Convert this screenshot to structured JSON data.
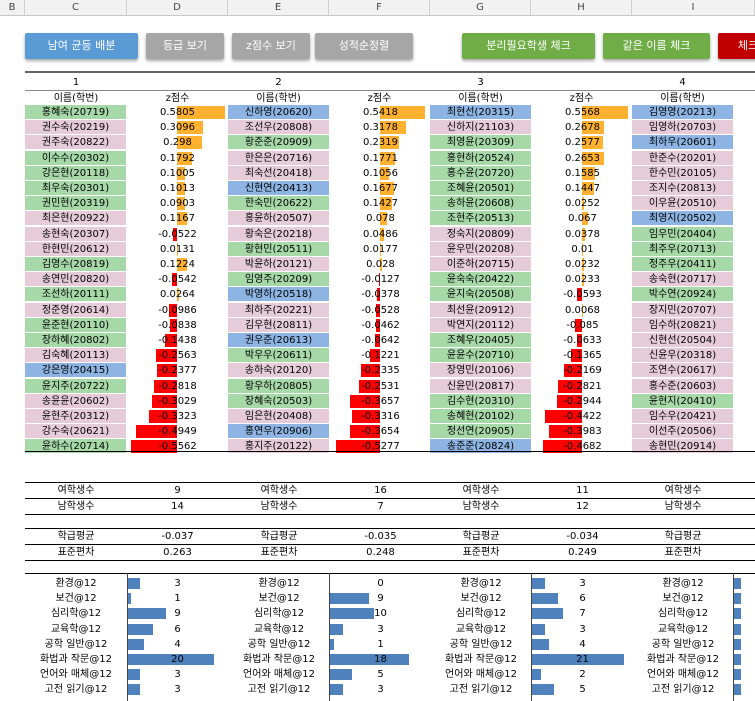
{
  "columns": [
    "B",
    "C",
    "D",
    "E",
    "F",
    "G",
    "H",
    "I"
  ],
  "buttons": {
    "b1": "남여 균등 배분",
    "b2": "등급 보기",
    "b3": "z점수 보기",
    "b4": "성적순정렬",
    "b5": "분리필요학생 체크",
    "b6": "같은 이름 체크",
    "b7": "체크"
  },
  "groups": [
    "1",
    "2",
    "3",
    "4"
  ],
  "hdr_name": "이름(학번)",
  "hdr_z": "z점수",
  "students": [
    [
      [
        "홍혜숙(20719)",
        "0.5805"
      ],
      [
        "신하영(20620)",
        "0.5418"
      ],
      [
        "최현선(20315)",
        "0.5568"
      ],
      [
        "김영영(20213)"
      ]
    ],
    [
      [
        "권수숙(20219)",
        "0.3096"
      ],
      [
        "조선우(20808)",
        "0.3178"
      ],
      [
        "신하지(21103)",
        "0.2678"
      ],
      [
        "임영하(20703)"
      ]
    ],
    [
      [
        "권주숙(20822)",
        "0.298"
      ],
      [
        "황준준(20909)",
        "0.2319"
      ],
      [
        "최영윤(20309)",
        "0.2577"
      ],
      [
        "최하우(20601)"
      ]
    ],
    [
      [
        "이수수(20302)",
        "0.1792"
      ],
      [
        "한은은(20716)",
        "0.1771"
      ],
      [
        "홍현하(20524)",
        "0.2653"
      ],
      [
        "한준수(20201)"
      ]
    ],
    [
      [
        "강은현(20118)",
        "0.1005"
      ],
      [
        "최숙선(20418)",
        "0.1056"
      ],
      [
        "홍수윤(20720)",
        "0.1585"
      ],
      [
        "한수민(20105)"
      ]
    ],
    [
      [
        "최우숙(20301)",
        "0.1013"
      ],
      [
        "신현연(20413)",
        "0.1677"
      ],
      [
        "조혜윤(20501)",
        "0.1447"
      ],
      [
        "조지수(20813)"
      ]
    ],
    [
      [
        "권민현(20319)",
        "0.0903"
      ],
      [
        "한숙민(20622)",
        "0.1427"
      ],
      [
        "송하윤(20608)",
        "0.0252"
      ],
      [
        "이우윤(20510)"
      ]
    ],
    [
      [
        "최은현(20922)",
        "0.1167"
      ],
      [
        "홍윤하(20507)",
        "0.078"
      ],
      [
        "조현주(20513)",
        "0.067"
      ],
      [
        "최영지(20502)"
      ]
    ],
    [
      [
        "송현숙(20307)",
        "-0.0522"
      ],
      [
        "황숙은(20218)",
        "0.0486"
      ],
      [
        "정숙지(20809)",
        "0.0378"
      ],
      [
        "임우민(20404)"
      ]
    ],
    [
      [
        "한현민(20612)",
        "0.0131"
      ],
      [
        "황현민(20511)",
        "0.0177"
      ],
      [
        "윤우민(20208)",
        "0.01"
      ],
      [
        "최주우(20713)"
      ]
    ],
    [
      [
        "김영수(20819)",
        "0.1224"
      ],
      [
        "박윤하(20121)",
        "0.028"
      ],
      [
        "이준하(20715)",
        "0.0232"
      ],
      [
        "정주우(20411)"
      ]
    ],
    [
      [
        "송연민(20820)",
        "-0.0542"
      ],
      [
        "임영주(20209)",
        "-0.0127"
      ],
      [
        "윤숙숙(20422)",
        "0.0233"
      ],
      [
        "송숙현(20717)"
      ]
    ],
    [
      [
        "조선하(20111)",
        "0.0264"
      ],
      [
        "박영하(20518)",
        "-0.0378"
      ],
      [
        "윤지숙(20508)",
        "-0.0593"
      ],
      [
        "박수연(20924)"
      ]
    ],
    [
      [
        "정준영(20614)",
        "-0.0986"
      ],
      [
        "최하주(20221)",
        "-0.0528"
      ],
      [
        "최선윤(20912)",
        "0.0068"
      ],
      [
        "장지민(20707)"
      ]
    ],
    [
      [
        "윤준현(20110)",
        "-0.0838"
      ],
      [
        "김우현(20811)",
        "-0.0462"
      ],
      [
        "박연지(20112)",
        "-0.085"
      ],
      [
        "임수하(20821)"
      ]
    ],
    [
      [
        "장하혜(20802)",
        "-0.1438"
      ],
      [
        "권우준(20613)",
        "-0.0642"
      ],
      [
        "조혜우(20405)",
        "-0.0633"
      ],
      [
        "신현선(20504)"
      ]
    ],
    [
      [
        "김숙혜(20113)",
        "-0.2563"
      ],
      [
        "박우우(20611)",
        "-0.1221"
      ],
      [
        "윤윤수(20710)",
        "-0.1365"
      ],
      [
        "신윤우(20318)"
      ]
    ],
    [
      [
        "강은영(20415)",
        "-0.2377"
      ],
      [
        "송하숙(20120)",
        "-0.2335"
      ],
      [
        "장영민(20106)",
        "-0.2169"
      ],
      [
        "조연수(20617)"
      ]
    ],
    [
      [
        "윤지주(20722)",
        "-0.2818"
      ],
      [
        "황우하(20805)",
        "-0.2531"
      ],
      [
        "신윤민(20817)",
        "-0.2821"
      ],
      [
        "홍수준(20603)"
      ]
    ],
    [
      [
        "송윤윤(20602)",
        "-0.3029"
      ],
      [
        "장혜숙(20503)",
        "-0.3657"
      ],
      [
        "김수현(20310)",
        "-0.2944"
      ],
      [
        "윤현지(20410)"
      ]
    ],
    [
      [
        "윤현주(20312)",
        "-0.3323"
      ],
      [
        "임은현(20408)",
        "-0.3316"
      ],
      [
        "송혜현(20102)",
        "-0.4422"
      ],
      [
        "임수우(20421)"
      ]
    ],
    [
      [
        "강수숙(20621)",
        "-0.4949"
      ],
      [
        "홍연우(20906)",
        "-0.3654"
      ],
      [
        "정선연(20905)",
        "-0.3983"
      ],
      [
        "이선주(20506)"
      ]
    ],
    [
      [
        "윤하수(20714)",
        "-0.5562"
      ],
      [
        "홍지주(20122)",
        "-0.5277"
      ],
      [
        "송준준(20824)",
        "-0.4682"
      ],
      [
        "송현민(20914)"
      ]
    ]
  ],
  "stats": {
    "female_label": "여학생수",
    "male_label": "남학생수",
    "avg_label": "학급평균",
    "sd_label": "표준편차",
    "female": [
      "9",
      "16",
      "11",
      ""
    ],
    "male": [
      "14",
      "7",
      "12",
      ""
    ],
    "avg": [
      "-0.037",
      "-0.035",
      "-0.034",
      ""
    ],
    "sd": [
      "0.263",
      "0.248",
      "0.249",
      ""
    ]
  },
  "subjects": [
    {
      "name": "환경@12",
      "v": [
        "3",
        "0",
        "3",
        ""
      ]
    },
    {
      "name": "보건@12",
      "v": [
        "1",
        "9",
        "6",
        ""
      ]
    },
    {
      "name": "심리학@12",
      "v": [
        "9",
        "10",
        "7",
        ""
      ]
    },
    {
      "name": "교육학@12",
      "v": [
        "6",
        "3",
        "3",
        ""
      ]
    },
    {
      "name": "공학 일반@12",
      "v": [
        "4",
        "1",
        "4",
        ""
      ]
    },
    {
      "name": "화법과 작문@12",
      "v": [
        "20",
        "18",
        "21",
        ""
      ]
    },
    {
      "name": "언어와 매체@12",
      "v": [
        "3",
        "5",
        "2",
        ""
      ]
    },
    {
      "name": "고전 읽기@12",
      "v": [
        "3",
        "3",
        "5",
        ""
      ]
    }
  ]
}
